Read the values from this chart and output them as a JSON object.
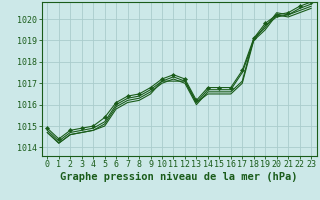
{
  "xlabel": "Graphe pression niveau de la mer (hPa)",
  "bg_color": "#cce8e8",
  "grid_color": "#aacccc",
  "line_color": "#1a5c1a",
  "marker_color": "#1a5c1a",
  "ylim": [
    1013.6,
    1020.8
  ],
  "xlim": [
    -0.5,
    23.5
  ],
  "yticks": [
    1014,
    1015,
    1016,
    1017,
    1018,
    1019,
    1020
  ],
  "xticks": [
    0,
    1,
    2,
    3,
    4,
    5,
    6,
    7,
    8,
    9,
    10,
    11,
    12,
    13,
    14,
    15,
    16,
    17,
    18,
    19,
    20,
    21,
    22,
    23
  ],
  "series": [
    [
      1014.7,
      1014.2,
      1014.6,
      1014.7,
      1014.8,
      1015.0,
      1015.8,
      1016.1,
      1016.2,
      1016.5,
      1017.1,
      1017.1,
      1017.1,
      1016.1,
      1016.5,
      1016.5,
      1016.5,
      1017.0,
      1019.0,
      1019.5,
      1020.2,
      1020.1,
      1020.3,
      1020.5
    ],
    [
      1014.7,
      1014.2,
      1014.6,
      1014.7,
      1014.8,
      1015.1,
      1015.9,
      1016.2,
      1016.3,
      1016.6,
      1017.0,
      1017.2,
      1017.0,
      1016.0,
      1016.6,
      1016.6,
      1016.6,
      1017.1,
      1019.1,
      1019.6,
      1020.3,
      1020.2,
      1020.4,
      1020.6
    ],
    [
      1014.8,
      1014.3,
      1014.7,
      1014.8,
      1014.9,
      1015.2,
      1016.0,
      1016.3,
      1016.4,
      1016.7,
      1017.1,
      1017.3,
      1017.1,
      1016.1,
      1016.7,
      1016.7,
      1016.7,
      1017.5,
      1019.0,
      1019.7,
      1020.1,
      1020.2,
      1020.5,
      1020.7
    ],
    [
      1014.9,
      1014.4,
      1014.8,
      1014.9,
      1015.0,
      1015.4,
      1016.1,
      1016.4,
      1016.5,
      1016.8,
      1017.2,
      1017.4,
      1017.2,
      1016.2,
      1016.8,
      1016.8,
      1016.8,
      1017.6,
      1019.1,
      1019.8,
      1020.2,
      1020.3,
      1020.6,
      1020.8
    ]
  ],
  "xlabel_fontsize": 7.5,
  "tick_fontsize": 6.0
}
